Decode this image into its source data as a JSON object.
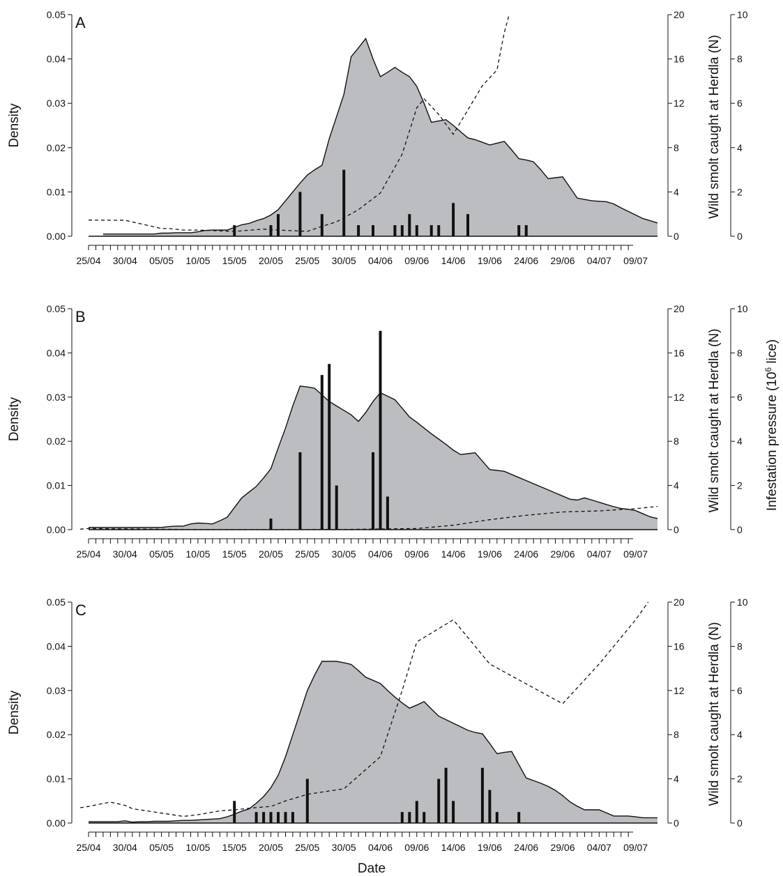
{
  "chart_data": [
    {
      "type": "area",
      "panel": "A",
      "x": [
        "25/04",
        "26/04",
        "27/04",
        "28/04",
        "29/04",
        "30/04",
        "01/05",
        "02/05",
        "03/05",
        "04/05",
        "05/05",
        "06/05",
        "07/05",
        "08/05",
        "09/05",
        "10/05",
        "11/05",
        "12/05",
        "13/05",
        "14/05",
        "15/05",
        "16/05",
        "17/05",
        "18/05",
        "19/05",
        "20/05",
        "21/05",
        "22/05",
        "23/05",
        "24/05",
        "25/05",
        "26/05",
        "27/05",
        "28/05",
        "29/05",
        "30/05",
        "31/05",
        "01/06",
        "02/06",
        "03/06",
        "04/06",
        "05/06",
        "06/06",
        "07/06",
        "08/06",
        "09/06",
        "10/06",
        "11/06",
        "12/06",
        "13/06",
        "14/06",
        "15/06",
        "16/06",
        "17/06",
        "18/06",
        "19/06",
        "20/06",
        "21/06",
        "22/06",
        "23/06",
        "24/06",
        "25/06",
        "26/06",
        "27/06",
        "28/06",
        "29/06",
        "30/06",
        "01/07",
        "02/07",
        "03/07",
        "04/07",
        "05/07",
        "06/07",
        "07/07",
        "08/07",
        "09/07",
        "10/07",
        "11/07",
        "12/07"
      ],
      "density": [
        null,
        null,
        0.0005,
        0.0005,
        0.0005,
        0.0005,
        0.0005,
        0.0005,
        0.0005,
        0.0005,
        0.0007,
        0.0007,
        0.0008,
        0.0008,
        0.0008,
        0.001,
        0.0013,
        0.0014,
        0.0014,
        0.0014,
        0.002,
        0.0026,
        0.0029,
        0.0035,
        0.004,
        0.0048,
        0.006,
        0.008,
        0.01,
        0.012,
        0.0138,
        0.015,
        0.016,
        0.022,
        0.027,
        0.032,
        0.0405,
        0.0425,
        0.0446,
        0.04,
        0.036,
        0.037,
        0.0381,
        0.037,
        0.036,
        0.0338,
        0.03,
        0.0257,
        0.026,
        0.0263,
        0.025,
        0.0236,
        0.0222,
        0.0218,
        0.0212,
        0.0206,
        0.021,
        0.0214,
        0.0195,
        0.0175,
        0.0172,
        0.0168,
        0.015,
        0.013,
        0.0132,
        0.0134,
        0.011,
        0.0086,
        0.0083,
        0.008,
        0.0079,
        0.0078,
        0.0073,
        0.0064,
        0.0056,
        0.0048,
        0.004,
        0.0035,
        0.003
      ],
      "smolt_counts": [
        {
          "x": "15/05",
          "n": 1
        },
        {
          "x": "20/05",
          "n": 1
        },
        {
          "x": "21/05",
          "n": 2
        },
        {
          "x": "24/05",
          "n": 4
        },
        {
          "x": "27/05",
          "n": 2
        },
        {
          "x": "30/05",
          "n": 6
        },
        {
          "x": "01/06",
          "n": 1
        },
        {
          "x": "03/06",
          "n": 1
        },
        {
          "x": "06/06",
          "n": 1
        },
        {
          "x": "07/06",
          "n": 1
        },
        {
          "x": "08/06",
          "n": 2
        },
        {
          "x": "09/06",
          "n": 1
        },
        {
          "x": "11/06",
          "n": 1
        },
        {
          "x": "12/06",
          "n": 1
        },
        {
          "x": "14/06",
          "n": 3
        },
        {
          "x": "16/06",
          "n": 2
        },
        {
          "x": "23/06",
          "n": 1
        },
        {
          "x": "24/06",
          "n": 1
        }
      ],
      "infestation": [
        {
          "x": "25/04",
          "v": 0.73
        },
        {
          "x": "30/04",
          "v": 0.72
        },
        {
          "x": "05/05",
          "v": 0.35
        },
        {
          "x": "06/05",
          "v": 0.35
        },
        {
          "x": "08/05",
          "v": 0.28
        },
        {
          "x": "10/05",
          "v": 0.28
        },
        {
          "x": "15/05",
          "v": 0.22
        },
        {
          "x": "19/05",
          "v": 0.32
        },
        {
          "x": "21/05",
          "v": 0.28
        },
        {
          "x": "25/05",
          "v": 0.22
        },
        {
          "x": "27/05",
          "v": 0.45
        },
        {
          "x": "29/05",
          "v": 0.65
        },
        {
          "x": "01/06",
          "v": 1.2
        },
        {
          "x": "04/06",
          "v": 1.95
        },
        {
          "x": "07/06",
          "v": 3.7
        },
        {
          "x": "09/06",
          "v": 5.8
        },
        {
          "x": "10/06",
          "v": 6.2
        },
        {
          "x": "12/06",
          "v": 5.5
        },
        {
          "x": "14/06",
          "v": 4.6
        },
        {
          "x": "18/06",
          "v": 6.8
        },
        {
          "x": "20/06",
          "v": 7.5
        },
        {
          "x": "21/06",
          "v": 9.2
        },
        {
          "x": "22/06",
          "v": 10.4
        }
      ]
    },
    {
      "type": "area",
      "panel": "B",
      "x": [
        "25/04",
        "26/04",
        "27/04",
        "28/04",
        "29/04",
        "30/04",
        "01/05",
        "02/05",
        "03/05",
        "04/05",
        "05/05",
        "06/05",
        "07/05",
        "08/05",
        "09/05",
        "10/05",
        "11/05",
        "12/05",
        "13/05",
        "14/05",
        "15/05",
        "16/05",
        "17/05",
        "18/05",
        "19/05",
        "20/05",
        "21/05",
        "22/05",
        "23/05",
        "24/05",
        "25/05",
        "26/05",
        "27/05",
        "28/05",
        "29/05",
        "30/05",
        "31/05",
        "01/06",
        "02/06",
        "03/06",
        "04/06",
        "05/06",
        "06/06",
        "07/06",
        "08/06",
        "09/06",
        "10/06",
        "11/06",
        "12/06",
        "13/06",
        "14/06",
        "15/06",
        "16/06",
        "17/06",
        "18/06",
        "19/06",
        "20/06",
        "21/06",
        "22/06",
        "23/06",
        "24/06",
        "25/06",
        "26/06",
        "27/06",
        "28/06",
        "29/06",
        "30/06",
        "01/07",
        "02/07",
        "03/07",
        "04/07",
        "05/07",
        "06/07",
        "07/07",
        "08/07",
        "09/07",
        "10/07",
        "11/07",
        "12/07"
      ],
      "density": [
        0.0005,
        0.0005,
        0.0005,
        0.0005,
        0.0005,
        0.0005,
        0.0005,
        0.0005,
        0.0005,
        0.0005,
        0.0005,
        0.0007,
        0.0008,
        0.0008,
        0.0013,
        0.0015,
        0.0014,
        0.0013,
        0.002,
        0.0028,
        0.005,
        0.0072,
        0.0085,
        0.0098,
        0.0117,
        0.0138,
        0.0185,
        0.023,
        0.028,
        0.0325,
        0.0323,
        0.032,
        0.0305,
        0.029,
        0.028,
        0.027,
        0.026,
        0.0245,
        0.0265,
        0.029,
        0.031,
        0.0302,
        0.0294,
        0.0275,
        0.0255,
        0.0243,
        0.023,
        0.0217,
        0.0205,
        0.0193,
        0.018,
        0.017,
        0.0172,
        0.0174,
        0.0155,
        0.0136,
        0.0134,
        0.0132,
        0.0125,
        0.0118,
        0.0111,
        0.0104,
        0.0097,
        0.009,
        0.0083,
        0.0076,
        0.0069,
        0.0067,
        0.0072,
        0.0067,
        0.0062,
        0.0057,
        0.0052,
        0.0048,
        0.0046,
        0.0043,
        0.0036,
        0.0029,
        0.0025
      ],
      "smolt_counts": [
        {
          "x": "20/05",
          "n": 1
        },
        {
          "x": "24/05",
          "n": 7
        },
        {
          "x": "27/05",
          "n": 14
        },
        {
          "x": "28/05",
          "n": 15
        },
        {
          "x": "29/05",
          "n": 4
        },
        {
          "x": "03/06",
          "n": 7
        },
        {
          "x": "04/06",
          "n": 18
        },
        {
          "x": "05/06",
          "n": 3
        }
      ],
      "infestation": [
        {
          "x": "23/04",
          "v": 0.0
        },
        {
          "x": "25/04",
          "v": 0.05
        },
        {
          "x": "05/05",
          "v": 0.02
        },
        {
          "x": "10/05",
          "v": 0.0
        },
        {
          "x": "20/05",
          "v": 0.0
        },
        {
          "x": "30/05",
          "v": 0.01
        },
        {
          "x": "09/06",
          "v": 0.05
        },
        {
          "x": "14/06",
          "v": 0.2
        },
        {
          "x": "19/06",
          "v": 0.45
        },
        {
          "x": "24/06",
          "v": 0.65
        },
        {
          "x": "29/06",
          "v": 0.8
        },
        {
          "x": "04/07",
          "v": 0.85
        },
        {
          "x": "09/07",
          "v": 0.95
        },
        {
          "x": "12/07",
          "v": 1.05
        }
      ]
    },
    {
      "type": "area",
      "panel": "C",
      "x": [
        "25/04",
        "26/04",
        "27/04",
        "28/04",
        "29/04",
        "30/04",
        "01/05",
        "02/05",
        "03/05",
        "04/05",
        "05/05",
        "06/05",
        "07/05",
        "08/05",
        "09/05",
        "10/05",
        "11/05",
        "12/05",
        "13/05",
        "14/05",
        "15/05",
        "16/05",
        "17/05",
        "18/05",
        "19/05",
        "20/05",
        "21/05",
        "22/05",
        "23/05",
        "24/05",
        "25/05",
        "26/05",
        "27/05",
        "28/05",
        "29/05",
        "30/05",
        "31/05",
        "01/06",
        "02/06",
        "03/06",
        "04/06",
        "05/06",
        "06/06",
        "07/06",
        "08/06",
        "09/06",
        "10/06",
        "11/06",
        "12/06",
        "13/06",
        "14/06",
        "15/06",
        "16/06",
        "17/06",
        "18/06",
        "19/06",
        "20/06",
        "21/06",
        "22/06",
        "23/06",
        "24/06",
        "25/06",
        "26/06",
        "27/06",
        "28/06",
        "29/06",
        "30/06",
        "01/07",
        "02/07",
        "03/07",
        "04/07",
        "05/07",
        "06/07",
        "07/07",
        "08/07",
        "09/07",
        "10/07",
        "11/07",
        "12/07"
      ],
      "density": [
        0.0003,
        0.0003,
        0.0003,
        0.0003,
        0.0003,
        0.0005,
        0.0002,
        0.0003,
        0.0003,
        0.0004,
        0.0004,
        0.0004,
        0.0005,
        0.0006,
        0.0006,
        0.0007,
        0.0008,
        0.0009,
        0.001,
        0.0014,
        0.002,
        0.0027,
        0.0032,
        0.0045,
        0.006,
        0.008,
        0.0108,
        0.015,
        0.02,
        0.025,
        0.03,
        0.0335,
        0.0366,
        0.0366,
        0.0366,
        0.0363,
        0.0359,
        0.0345,
        0.033,
        0.0323,
        0.0316,
        0.03,
        0.0285,
        0.0272,
        0.026,
        0.0267,
        0.0275,
        0.0258,
        0.0242,
        0.0234,
        0.0226,
        0.0218,
        0.021,
        0.0205,
        0.0202,
        0.018,
        0.0157,
        0.016,
        0.0162,
        0.0132,
        0.0102,
        0.0096,
        0.009,
        0.0083,
        0.0074,
        0.0062,
        0.0048,
        0.0038,
        0.003,
        0.003,
        0.003,
        0.0023,
        0.0016,
        0.0016,
        0.0016,
        0.0014,
        0.0012,
        0.0012,
        0.0012
      ],
      "smolt_counts": [
        {
          "x": "15/05",
          "n": 2
        },
        {
          "x": "18/05",
          "n": 1
        },
        {
          "x": "19/05",
          "n": 1
        },
        {
          "x": "20/05",
          "n": 1
        },
        {
          "x": "21/05",
          "n": 1
        },
        {
          "x": "22/05",
          "n": 1
        },
        {
          "x": "23/05",
          "n": 1
        },
        {
          "x": "25/05",
          "n": 4
        },
        {
          "x": "07/06",
          "n": 1
        },
        {
          "x": "08/06",
          "n": 1
        },
        {
          "x": "09/06",
          "n": 2
        },
        {
          "x": "10/06",
          "n": 1
        },
        {
          "x": "12/06",
          "n": 4
        },
        {
          "x": "13/06",
          "n": 5
        },
        {
          "x": "14/06",
          "n": 2
        },
        {
          "x": "18/06",
          "n": 5
        },
        {
          "x": "19/06",
          "n": 3
        },
        {
          "x": "20/06",
          "n": 1
        },
        {
          "x": "23/06",
          "n": 1
        }
      ],
      "infestation": [
        {
          "x": "23/04",
          "v": 0.65
        },
        {
          "x": "25/04",
          "v": 0.75
        },
        {
          "x": "28/04",
          "v": 0.95
        },
        {
          "x": "30/04",
          "v": 0.8
        },
        {
          "x": "01/05",
          "v": 0.65
        },
        {
          "x": "05/05",
          "v": 0.45
        },
        {
          "x": "08/05",
          "v": 0.3
        },
        {
          "x": "10/05",
          "v": 0.38
        },
        {
          "x": "13/05",
          "v": 0.55
        },
        {
          "x": "15/05",
          "v": 0.6
        },
        {
          "x": "18/05",
          "v": 0.7
        },
        {
          "x": "20/05",
          "v": 0.75
        },
        {
          "x": "22/05",
          "v": 1.0
        },
        {
          "x": "25/05",
          "v": 1.3
        },
        {
          "x": "28/05",
          "v": 1.45
        },
        {
          "x": "30/05",
          "v": 1.55
        },
        {
          "x": "04/06",
          "v": 3.0
        },
        {
          "x": "07/06",
          "v": 6.0
        },
        {
          "x": "09/06",
          "v": 8.2
        },
        {
          "x": "14/06",
          "v": 9.2
        },
        {
          "x": "19/06",
          "v": 7.2
        },
        {
          "x": "24/06",
          "v": 6.3
        },
        {
          "x": "29/06",
          "v": 5.4
        },
        {
          "x": "04/07",
          "v": 7.2
        },
        {
          "x": "09/07",
          "v": 9.2
        },
        {
          "x": "12/07",
          "v": 10.6
        }
      ]
    }
  ],
  "axes": {
    "x_tick_labels": [
      "25/04",
      "30/04",
      "05/05",
      "10/05",
      "15/05",
      "20/05",
      "25/05",
      "30/05",
      "04/06",
      "09/06",
      "14/06",
      "19/06",
      "24/06",
      "29/06",
      "04/07",
      "09/07"
    ],
    "xlabel": "Date",
    "left_ylabel": "Density",
    "left_ticks": [
      "0.00",
      "0.01",
      "0.02",
      "0.03",
      "0.04",
      "0.05"
    ],
    "left_ylim": [
      0,
      0.05
    ],
    "mid_ylabel": "Wild smolt caught at Herdla (N)",
    "mid_ticks": [
      "0",
      "4",
      "8",
      "12",
      "16",
      "20"
    ],
    "mid_ylim": [
      0,
      20
    ],
    "right_ylabel_pre": "Infestation pressure (10",
    "right_ylabel_sup": "6",
    "right_ylabel_post": " lice)",
    "right_ticks": [
      "0",
      "2",
      "4",
      "6",
      "8",
      "10"
    ],
    "right_ylim": [
      0,
      10
    ]
  },
  "colors": {
    "area_fill": "#bcbdc0",
    "line": "#111111"
  }
}
